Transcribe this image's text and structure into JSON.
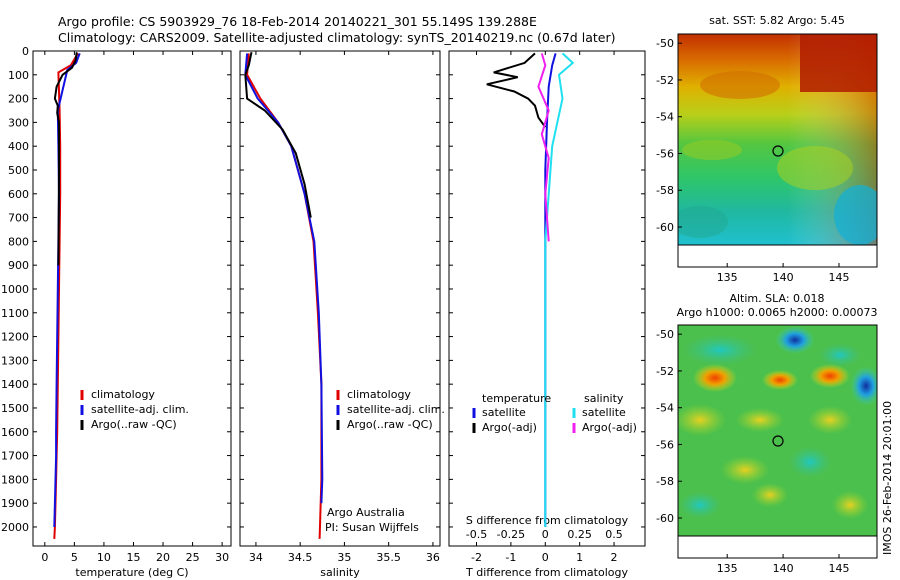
{
  "title_line1": "Argo profile: CS 5903929_76 18-Feb-2014 20140221_301 55.149S 139.288E",
  "title_line2": "Climatology: CARS2009. Satellite-adjusted climatology: synTS_20140219.nc (0.67d later)",
  "depth_ticks": [
    "0",
    "100",
    "200",
    "300",
    "400",
    "500",
    "600",
    "700",
    "800",
    "900",
    "1000",
    "1100",
    "1200",
    "1300",
    "1400",
    "1500",
    "1600",
    "1700",
    "1800",
    "1900",
    "2000"
  ],
  "colors": {
    "climatology": "#e00000",
    "satellite": "#1010e0",
    "argo": "#000000",
    "sat_salinity": "#20e0f0",
    "argo_salinity": "#f020f0"
  },
  "chart_data": [
    {
      "type": "line",
      "xlabel": "temperature (deg C)",
      "x_ticks": [
        "0",
        "5",
        "10",
        "15",
        "20",
        "25",
        "30"
      ],
      "xlim": [
        -2,
        31.5
      ],
      "ylim": [
        2080,
        0
      ],
      "legend": [
        "climatology",
        "satellite-adj. clim.",
        "Argo(..raw -QC)"
      ],
      "series": [
        {
          "name": "climatology",
          "x": [
            5.6,
            4.4,
            2.3,
            2.5,
            2.6,
            2.6,
            2.5,
            2.4,
            2.3,
            2.2,
            2.1,
            2.0,
            1.9,
            1.8,
            1.7,
            1.6
          ],
          "y": [
            10,
            60,
            90,
            250,
            400,
            600,
            800,
            1000,
            1200,
            1400,
            1600,
            1700,
            1800,
            1900,
            2000,
            2050
          ]
        },
        {
          "name": "satellite-adj. clim.",
          "x": [
            5.9,
            5.3,
            3.8,
            2.2,
            2.3,
            2.4,
            2.3,
            2.2,
            2.1,
            2.0,
            1.9,
            1.9,
            1.8,
            1.7,
            1.6
          ],
          "y": [
            10,
            50,
            80,
            250,
            400,
            600,
            800,
            1000,
            1200,
            1400,
            1600,
            1700,
            1800,
            1900,
            2000
          ]
        },
        {
          "name": "Argo(..raw -QC)",
          "x": [
            5.4,
            5.2,
            4.6,
            3.0,
            2.0,
            1.7,
            2.2,
            2.1,
            2.4,
            2.4,
            2.3
          ],
          "y": [
            5,
            40,
            70,
            100,
            150,
            200,
            230,
            260,
            300,
            500,
            900
          ]
        }
      ]
    },
    {
      "type": "line",
      "xlabel": "salinity",
      "x_ticks": [
        "34",
        "34.5",
        "35",
        "35.5",
        "36"
      ],
      "xlim": [
        33.82,
        36.08
      ],
      "ylim": [
        2080,
        0
      ],
      "legend": [
        "climatology",
        "satellite-adj. clim.",
        "Argo(..raw -QC)"
      ],
      "annotations": [
        "Argo Australia",
        "PI: Susan Wijffels"
      ],
      "series": [
        {
          "name": "climatology",
          "x": [
            33.92,
            33.9,
            34.05,
            34.25,
            34.4,
            34.55,
            34.65,
            34.7,
            34.74,
            34.74,
            34.72
          ],
          "y": [
            10,
            100,
            200,
            300,
            400,
            600,
            800,
            1100,
            1400,
            1800,
            2050
          ]
        },
        {
          "name": "satellite-adj. clim.",
          "x": [
            33.9,
            33.88,
            34.02,
            34.25,
            34.4,
            34.55,
            34.66,
            34.71,
            34.74,
            34.75,
            34.74
          ],
          "y": [
            10,
            100,
            200,
            300,
            400,
            600,
            800,
            1100,
            1400,
            1800,
            1900
          ]
        },
        {
          "name": "Argo(..raw -QC)",
          "x": [
            33.95,
            33.92,
            33.88,
            33.9,
            34.1,
            34.3,
            34.45,
            34.55,
            34.62
          ],
          "y": [
            5,
            60,
            100,
            200,
            250,
            330,
            430,
            560,
            700
          ]
        }
      ]
    },
    {
      "type": "line",
      "xlabel": "T difference from climatology",
      "x_ticks": [
        "-2",
        "-1",
        "0",
        "1",
        "2"
      ],
      "x2label": "S difference from climatology",
      "x2_ticks": [
        "-0.5",
        "-0.25",
        "0",
        "0.25",
        "0.5"
      ],
      "xlim": [
        -2.8,
        2.9
      ],
      "ylim": [
        2080,
        0
      ],
      "legend_headers": [
        "temperature",
        "salinity"
      ],
      "legend": [
        "satellite",
        "Argo(-adj)",
        "satellite",
        "Argo(-adj)"
      ],
      "series": [
        {
          "name": "satellite",
          "x": [
            0.3,
            0.2,
            0.1,
            0.05,
            0.0,
            0.0,
            0.0,
            0.0
          ],
          "y": [
            10,
            60,
            150,
            300,
            500,
            900,
            1500,
            2000
          ]
        },
        {
          "name": "Argo(-adj)",
          "x": [
            -0.3,
            -0.6,
            -1.5,
            -0.8,
            -1.7,
            -0.9,
            -0.5,
            -0.3,
            -0.2,
            0.0
          ],
          "y": [
            10,
            50,
            90,
            110,
            140,
            170,
            200,
            230,
            280,
            320
          ]
        },
        {
          "name": "satellite",
          "x": [
            0.5,
            0.8,
            0.4,
            0.5,
            0.2,
            0.0,
            0.0
          ],
          "y": [
            10,
            50,
            100,
            200,
            400,
            800,
            2000
          ]
        },
        {
          "name": "Argo(-adj)",
          "x": [
            -0.1,
            0.0,
            -0.2,
            0.1,
            -0.1,
            0.1,
            0.0,
            0.1
          ],
          "y": [
            10,
            60,
            150,
            250,
            350,
            450,
            600,
            800
          ]
        }
      ]
    }
  ],
  "maps": {
    "sst": {
      "title": "sat. SST: 5.82  Argo: 5.45",
      "lat_ticks": [
        "-50",
        "-52",
        "-54",
        "-56",
        "-58",
        "-60"
      ],
      "lon_ticks": [
        "135",
        "140",
        "145"
      ]
    },
    "sla": {
      "title1": "Altim. SLA: 0.018",
      "title2": "Argo h1000: 0.0065 h2000: 0.00073",
      "lat_ticks": [
        "-50",
        "-52",
        "-54",
        "-56",
        "-58",
        "-60"
      ],
      "lon_ticks": [
        "135",
        "140",
        "145"
      ]
    }
  },
  "footer_stamp": "IMOS 26-Feb-2014 20:01:00"
}
